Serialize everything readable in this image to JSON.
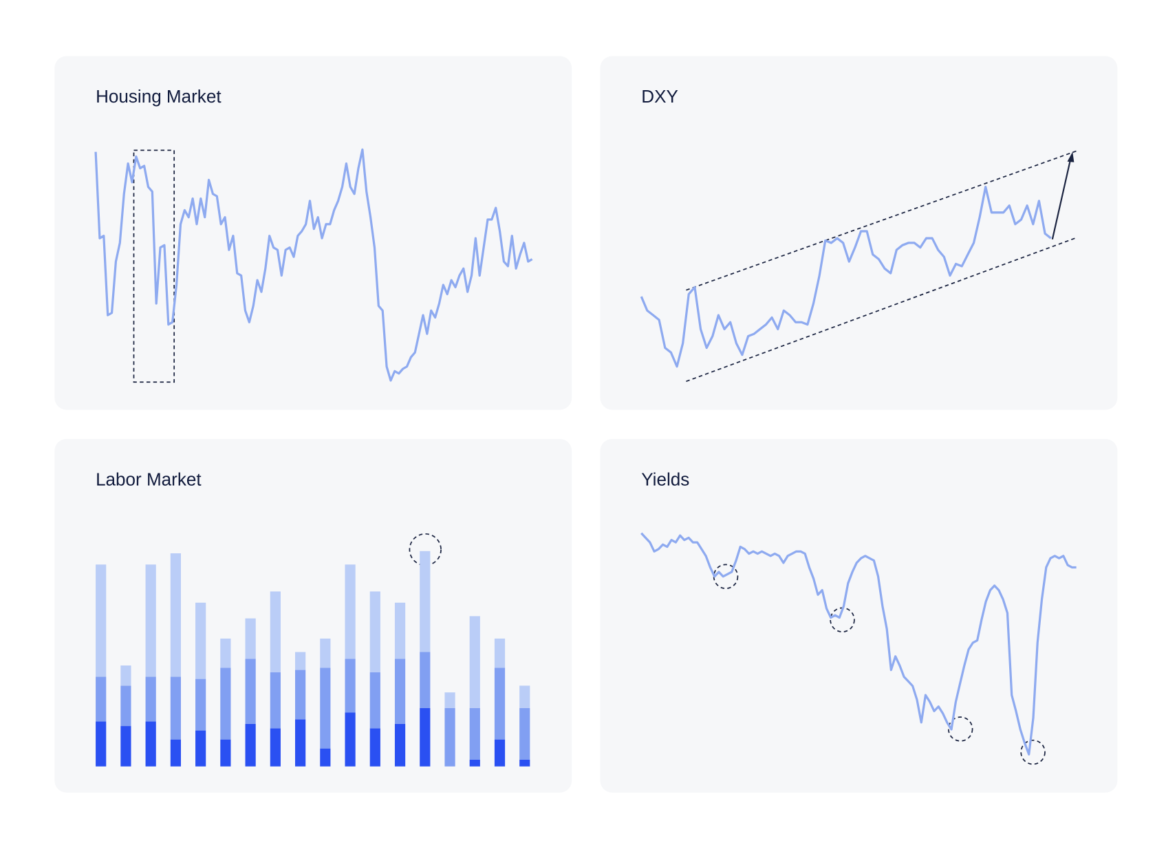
{
  "chart_data": [
    {
      "type": "line",
      "title": "Housing Market",
      "color": "#8eaaf0",
      "ylim": [
        0,
        100
      ],
      "values": [
        99,
        62,
        63,
        29,
        30,
        52,
        60,
        81,
        94,
        86,
        97,
        92,
        93,
        84,
        82,
        34,
        58,
        59,
        25,
        26,
        42,
        68,
        74,
        71,
        79,
        68,
        79,
        71,
        87,
        81,
        80,
        68,
        71,
        57,
        63,
        47,
        46,
        31,
        26,
        33,
        44,
        39,
        49,
        63,
        58,
        57,
        46,
        57,
        58,
        54,
        63,
        65,
        68,
        78,
        66,
        71,
        62,
        68,
        68,
        74,
        78,
        84,
        94,
        84,
        81,
        92,
        100,
        82,
        71,
        58,
        33,
        31,
        7,
        1,
        5,
        4,
        6,
        7,
        11,
        13,
        21,
        29,
        21,
        31,
        28,
        34,
        42,
        38,
        44,
        41,
        46,
        49,
        39,
        46,
        62,
        46,
        58,
        70,
        70,
        75,
        65,
        52,
        50,
        63,
        49,
        55,
        60,
        52,
        53
      ]
    },
    {
      "type": "line",
      "title": "DXY",
      "color": "#8eaaf0",
      "ylim": [
        0,
        100
      ],
      "values": [
        37,
        31,
        29,
        27,
        15,
        13,
        7,
        17,
        38,
        41,
        23,
        15,
        20,
        29,
        23,
        26,
        17,
        12,
        20,
        21,
        23,
        25,
        28,
        23,
        31,
        29,
        26,
        26,
        25,
        34,
        46,
        61,
        60,
        62,
        60,
        52,
        58,
        65,
        65,
        55,
        53,
        49,
        47,
        57,
        59,
        60,
        60,
        58,
        62,
        62,
        57,
        54,
        46,
        51,
        50,
        55,
        60,
        71,
        84,
        73,
        73,
        73,
        76,
        68,
        70,
        76,
        68,
        78,
        64,
        62
      ]
    },
    {
      "type": "bar",
      "title": "Labor Market",
      "stacked": true,
      "ylim": [
        0,
        100
      ],
      "series": [
        {
          "color": "#2a50f2",
          "values": [
            20,
            18,
            20,
            12,
            16,
            12,
            19,
            17,
            21,
            8,
            24,
            17,
            19,
            26,
            0,
            3,
            12,
            3
          ]
        },
        {
          "color": "#819ff2",
          "values": [
            20,
            18,
            20,
            28,
            23,
            32,
            29,
            25,
            22,
            36,
            24,
            25,
            29,
            25,
            26,
            23,
            32,
            23
          ]
        },
        {
          "color": "#bacdf7",
          "values": [
            50,
            9,
            50,
            55,
            34,
            13,
            18,
            36,
            8,
            13,
            42,
            36,
            25,
            45,
            7,
            41,
            13,
            10
          ]
        }
      ]
    },
    {
      "type": "line",
      "title": "Yields",
      "color": "#8eaaf0",
      "ylim": [
        0,
        100
      ],
      "values": [
        99,
        97,
        95,
        91,
        92,
        94,
        93,
        96,
        95,
        98,
        96,
        97,
        95,
        95,
        92,
        89,
        84,
        80,
        82,
        80,
        81,
        82,
        87,
        93,
        92,
        90,
        91,
        90,
        91,
        90,
        89,
        90,
        89,
        86,
        89,
        90,
        91,
        91,
        90,
        84,
        79,
        72,
        74,
        66,
        62,
        63,
        62,
        67,
        77,
        82,
        86,
        88,
        89,
        88,
        87,
        80,
        67,
        57,
        39,
        45,
        41,
        36,
        34,
        32,
        26,
        16,
        28,
        25,
        21,
        23,
        20,
        16,
        13,
        25,
        33,
        41,
        48,
        51,
        52,
        61,
        69,
        74,
        76,
        74,
        70,
        64,
        28,
        21,
        13,
        7,
        2,
        18,
        51,
        70,
        84,
        88,
        89,
        88,
        89,
        85,
        84,
        84
      ]
    }
  ]
}
